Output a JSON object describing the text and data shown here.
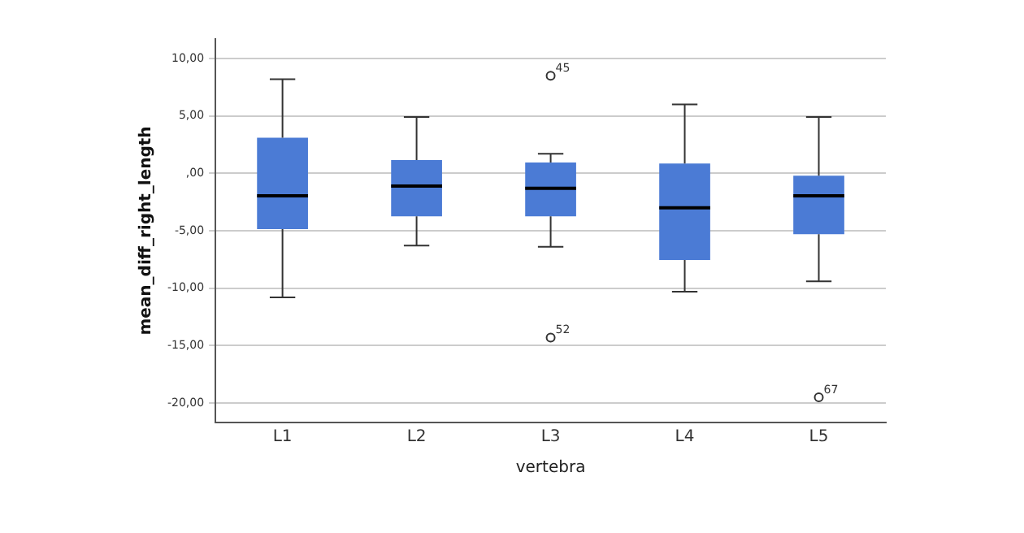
{
  "chart_data": {
    "type": "box",
    "xlabel": "vertebra",
    "ylabel": "mean_diff_right_length",
    "categories": [
      "L1",
      "L2",
      "L3",
      "L4",
      "L5"
    ],
    "color": "#4b7bd5",
    "boxes": [
      {
        "low": -10.8,
        "q1": -4.85,
        "median": -1.95,
        "q3": 3.1,
        "high": 8.2
      },
      {
        "low": -6.3,
        "q1": -3.75,
        "median": -1.1,
        "q3": 1.15,
        "high": 4.9
      },
      {
        "low": -6.4,
        "q1": -3.75,
        "median": -1.3,
        "q3": 0.95,
        "high": 1.7,
        "outliers": [
          8.5,
          -14.3
        ]
      },
      {
        "low": -10.3,
        "q1": -7.55,
        "median": -3.0,
        "q3": 0.85,
        "high": 6.0
      },
      {
        "low": -9.4,
        "q1": -5.3,
        "median": -1.95,
        "q3": -0.2,
        "high": 4.9,
        "outliers": [
          -19.5
        ]
      }
    ],
    "ylim": [
      -21.7,
      11.7
    ],
    "yticks": [
      {
        "value": -20,
        "label": "-20,00"
      },
      {
        "value": -15,
        "label": "-15,00"
      },
      {
        "value": -10,
        "label": "-10,00"
      },
      {
        "value": -5,
        "label": "-5,00"
      },
      {
        "value": 0,
        "label": ",00"
      },
      {
        "value": 5,
        "label": "5,00"
      },
      {
        "value": 10,
        "label": "10,00"
      }
    ],
    "annotations": [
      "45",
      "52",
      "67"
    ],
    "grid": "y",
    "legend": false
  }
}
